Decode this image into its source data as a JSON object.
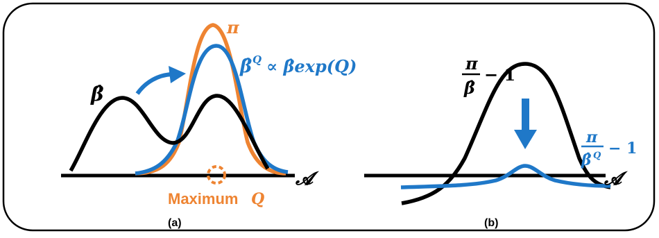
{
  "panels": {
    "a": {
      "caption": "(a)",
      "beta_hat_label": "β̂",
      "pi_label": "π",
      "beta_q_label": "β̂",
      "beta_q_superscript": "Q",
      "beta_q_rhs": "∝ β̂exp(Q)",
      "axis_label": "𝓐",
      "max_q_label_word": "Maximum",
      "max_q_label_var": "Q"
    },
    "b": {
      "caption": "(b)",
      "ratio_black_num": "π",
      "ratio_black_den": "β̂",
      "ratio_black_tail": "− 1",
      "ratio_blue_num": "π",
      "ratio_blue_den": "β̂",
      "ratio_blue_den_sup": "Q",
      "ratio_blue_tail": "− 1",
      "axis_label": "𝓐"
    }
  },
  "colors": {
    "black": "#000000",
    "blue": "#1f78c8",
    "orange": "#ee8432"
  }
}
